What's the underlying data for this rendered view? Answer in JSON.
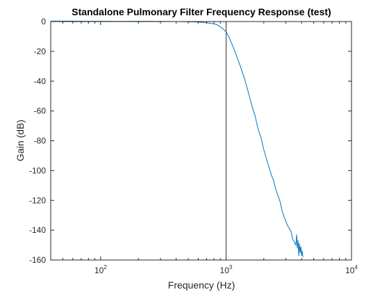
{
  "chart_data": {
    "type": "line",
    "title": "Standalone Pulmonary Filter Frequency Response (test)",
    "xlabel": "Frequency (Hz)",
    "ylabel": "Gain (dB)",
    "xscale": "log",
    "xlim": [
      40,
      10000
    ],
    "ylim": [
      -160,
      0
    ],
    "grid": false,
    "xticks": [
      {
        "value": 100,
        "base": "10",
        "exp": "2"
      },
      {
        "value": 1000,
        "base": "10",
        "exp": "3"
      },
      {
        "value": 10000,
        "base": "10",
        "exp": "4"
      }
    ],
    "yticks": [
      0,
      -20,
      -40,
      -60,
      -80,
      -100,
      -120,
      -140,
      -160
    ],
    "line_color": "#0072bd",
    "reference_lines": [
      {
        "axis": "x",
        "value": 1000,
        "color": "#000000"
      }
    ],
    "series": [
      {
        "x": [
          40,
          60,
          80,
          100,
          150,
          200,
          300,
          400,
          500,
          600,
          700,
          800,
          850,
          900,
          950,
          1000,
          1050,
          1100,
          1150,
          1200,
          1300,
          1400,
          1500,
          1600,
          1700,
          1800,
          1900,
          2000,
          2100,
          2200,
          2300,
          2400,
          2500,
          2600,
          2700,
          2800,
          2900,
          3000,
          3100,
          3200,
          3300,
          3400,
          3500,
          3600,
          3650,
          3700,
          3750,
          3800,
          3850,
          3900,
          3950,
          4000,
          4050,
          4100
        ],
        "y": [
          0.3,
          0.3,
          0.2,
          0.2,
          0.1,
          0.2,
          0.1,
          0,
          -0.1,
          -0.3,
          -0.8,
          -1.5,
          -2.2,
          -3.5,
          -5,
          -7,
          -10,
          -14,
          -18,
          -22,
          -30,
          -38,
          -47,
          -56,
          -63,
          -72,
          -78,
          -86,
          -92,
          -98,
          -103,
          -107,
          -113,
          -117,
          -121,
          -127,
          -131,
          -134,
          -137,
          -139,
          -141,
          -146,
          -148,
          -150,
          -143,
          -152,
          -147,
          -157,
          -149,
          -155,
          -151,
          -157,
          -154,
          -158
        ]
      }
    ]
  }
}
